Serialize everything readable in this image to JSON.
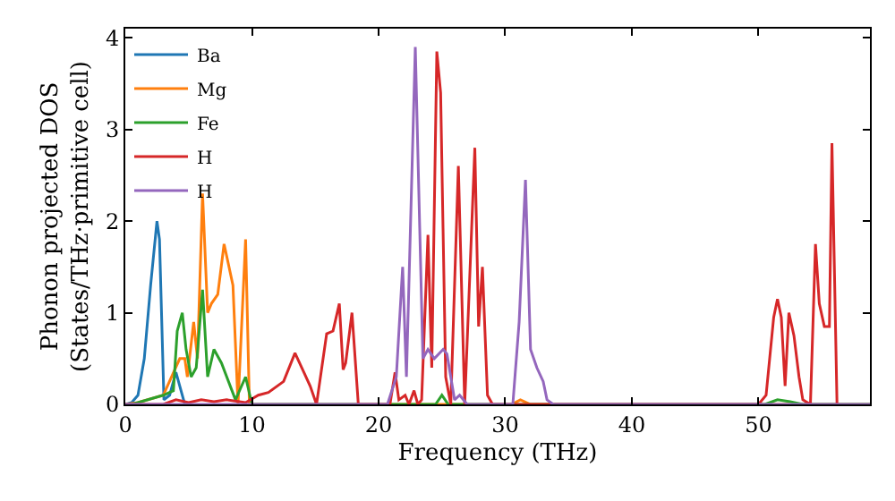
{
  "chart_data": {
    "type": "line",
    "xlabel": "Frequency (THz)",
    "ylabel": "Phonon projected DOS\n(States/THz·primitive cell)",
    "xlim": [
      0,
      58.8
    ],
    "ylim": [
      0,
      4.1
    ],
    "xticks": [
      0,
      10,
      20,
      30,
      40,
      50
    ],
    "yticks": [
      0,
      1,
      2,
      3,
      4
    ],
    "legend": "top left",
    "marker": "none",
    "line_style": "solid",
    "series": [
      {
        "name": "Ba",
        "color": "#1f77b4",
        "x": [
          0,
          0.5,
          1.0,
          1.5,
          2.0,
          2.5,
          2.7,
          3.05,
          3.5,
          4.0,
          4.7
        ],
        "values": [
          0,
          0.02,
          0.1,
          0.5,
          1.3,
          2.0,
          1.8,
          0.05,
          0.1,
          0.35,
          0.0
        ]
      },
      {
        "name": "Mg",
        "color": "#ff7f0e",
        "x": [
          0,
          1.0,
          3.0,
          4.3,
          4.7,
          4.9,
          5.4,
          5.7,
          6.1,
          6.5,
          6.8,
          7.3,
          7.8,
          8.5,
          8.9,
          9.5,
          9.8,
          11,
          30.5,
          31.2,
          32,
          58.8
        ],
        "values": [
          0,
          0.02,
          0.1,
          0.5,
          0.5,
          0.3,
          0.9,
          0.5,
          2.3,
          1.0,
          1.1,
          1.2,
          1.75,
          1.3,
          0.0,
          1.8,
          0.0,
          0,
          0,
          0.05,
          0,
          0
        ]
      },
      {
        "name": "Fe",
        "color": "#2ca02c",
        "x": [
          0,
          0.5,
          3.0,
          3.8,
          4.1,
          4.5,
          4.8,
          5.2,
          5.6,
          6.1,
          6.5,
          7.0,
          7.6,
          8.7,
          9.5,
          10.0,
          24.5,
          25.0,
          25.5,
          50.5,
          51.5,
          52.5,
          53.5,
          58.8
        ],
        "values": [
          0,
          0,
          0.1,
          0.15,
          0.8,
          1.0,
          0.6,
          0.3,
          0.4,
          1.25,
          0.3,
          0.6,
          0.45,
          0.05,
          0.3,
          0,
          0,
          0.1,
          0,
          0,
          0.05,
          0.03,
          0,
          0
        ]
      },
      {
        "name": "H",
        "color": "#d62728",
        "x": [
          0,
          3.0,
          4.0,
          5.0,
          6.0,
          7.0,
          8.0,
          9.5,
          10.5,
          11.3,
          12.5,
          13.4,
          14.1,
          14.6,
          15.1,
          15.9,
          16.4,
          16.9,
          17.2,
          17.4,
          17.9,
          18.4,
          20.9,
          21.3,
          21.6,
          22.1,
          22.4,
          22.8,
          23.1,
          23.4,
          23.9,
          24.2,
          24.6,
          24.9,
          25.3,
          25.7,
          26.3,
          26.8,
          27.6,
          27.9,
          28.2,
          28.6,
          29.0,
          50.0,
          50.6,
          51.2,
          51.5,
          51.8,
          52.1,
          52.4,
          52.8,
          53.2,
          53.5,
          54.1,
          54.5,
          54.8,
          55.2,
          55.6,
          55.8,
          56.2
        ],
        "values": [
          0,
          0,
          0.05,
          0.02,
          0.05,
          0.03,
          0.05,
          0.02,
          0.1,
          0.13,
          0.25,
          0.56,
          0.35,
          0.2,
          0,
          0.77,
          0.8,
          1.1,
          0.38,
          0.45,
          1.0,
          0,
          0,
          0.35,
          0.05,
          0.1,
          0,
          0.15,
          0,
          0.05,
          1.85,
          0.4,
          3.85,
          3.4,
          0.3,
          0,
          2.6,
          0,
          2.8,
          0.85,
          1.5,
          0.1,
          0,
          0,
          0.1,
          0.95,
          1.15,
          0.95,
          0.2,
          1.0,
          0.75,
          0.3,
          0.05,
          0,
          1.75,
          1.1,
          0.85,
          0.85,
          2.85,
          0
        ]
      },
      {
        "name": "H",
        "color": "#9467bd",
        "x": [
          0,
          20.7,
          21.4,
          21.9,
          22.2,
          22.9,
          23.5,
          23.9,
          24.4,
          25.1,
          25.4,
          26.0,
          26.4,
          27.0,
          30.6,
          31.1,
          31.6,
          32.0,
          32.5,
          33.0,
          33.3,
          33.8,
          58.8
        ],
        "values": [
          0,
          0,
          0.3,
          1.5,
          0.3,
          3.9,
          0.5,
          0.6,
          0.5,
          0.6,
          0.55,
          0.05,
          0.1,
          0,
          0,
          0.9,
          2.45,
          0.6,
          0.4,
          0.25,
          0.05,
          0,
          0
        ]
      }
    ]
  }
}
